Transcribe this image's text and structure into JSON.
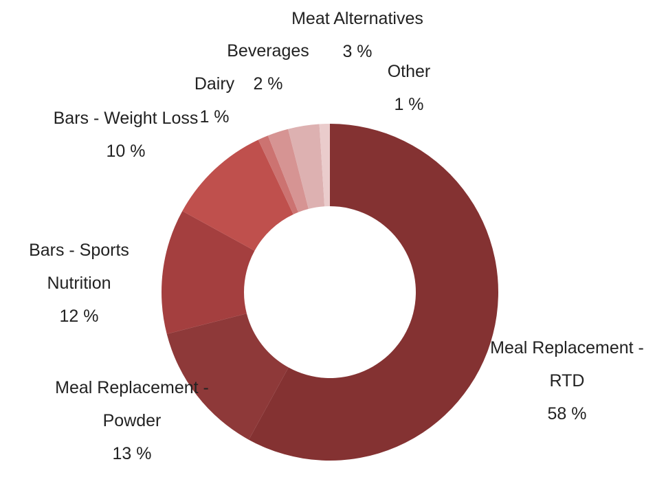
{
  "chart_data": {
    "type": "donut",
    "categories": [
      "Meal Replacement - RTD",
      "Meal Replacement - Powder",
      "Bars - Sports Nutrition",
      "Bars - Weight Loss",
      "Dairy",
      "Beverages",
      "Meat Alternatives",
      "Other"
    ],
    "values": [
      58,
      13,
      12,
      10,
      1,
      2,
      3,
      1
    ],
    "value_labels": [
      "58 %",
      "13 %",
      "12 %",
      "10 %",
      "1 %",
      "2 %",
      "3 %",
      "1 %"
    ],
    "colors": [
      "#843232",
      "#8e3939",
      "#a43f3f",
      "#bf504d",
      "#cc7371",
      "#d69493",
      "#ddb1b1",
      "#eacccc"
    ]
  }
}
